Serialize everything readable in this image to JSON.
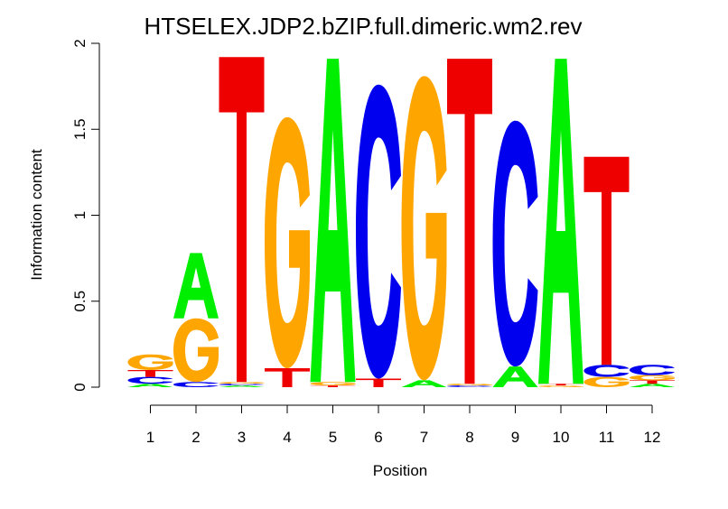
{
  "chart_data": {
    "type": "sequence-logo",
    "title": "HTSELEX.JDP2.bZIP.full.dimeric.wm2.rev",
    "xlabel": "Position",
    "ylabel": "Information content",
    "ylim": [
      0,
      2
    ],
    "y_ticks": [
      "0",
      "0.5",
      "1",
      "1.5",
      "2"
    ],
    "x_ticks": [
      "1",
      "2",
      "3",
      "4",
      "5",
      "6",
      "7",
      "8",
      "9",
      "10",
      "11",
      "12"
    ],
    "colors": {
      "A": "#00ee00",
      "C": "#0000ee",
      "G": "#ffa500",
      "T": "#ee0000"
    },
    "positions": [
      {
        "position": 1,
        "letters": [
          {
            "base": "A",
            "height": 0.02
          },
          {
            "base": "C",
            "height": 0.04
          },
          {
            "base": "T",
            "height": 0.04
          },
          {
            "base": "G",
            "height": 0.09
          }
        ]
      },
      {
        "position": 2,
        "letters": [
          {
            "base": "C",
            "height": 0.03
          },
          {
            "base": "G",
            "height": 0.37
          },
          {
            "base": "A",
            "height": 0.38
          }
        ]
      },
      {
        "position": 3,
        "letters": [
          {
            "base": "A",
            "height": 0.01
          },
          {
            "base": "C",
            "height": 0.01
          },
          {
            "base": "G",
            "height": 0.01
          },
          {
            "base": "T",
            "height": 1.89
          }
        ]
      },
      {
        "position": 4,
        "letters": [
          {
            "base": "T",
            "height": 0.11
          },
          {
            "base": "G",
            "height": 1.46
          }
        ]
      },
      {
        "position": 5,
        "letters": [
          {
            "base": "T",
            "height": 0.01
          },
          {
            "base": "G",
            "height": 0.02
          },
          {
            "base": "A",
            "height": 1.88
          }
        ]
      },
      {
        "position": 6,
        "letters": [
          {
            "base": "T",
            "height": 0.05
          },
          {
            "base": "C",
            "height": 1.71
          }
        ]
      },
      {
        "position": 7,
        "letters": [
          {
            "base": "A",
            "height": 0.04
          },
          {
            "base": "G",
            "height": 1.77
          }
        ]
      },
      {
        "position": 8,
        "letters": [
          {
            "base": "C",
            "height": 0.01
          },
          {
            "base": "G",
            "height": 0.01
          },
          {
            "base": "T",
            "height": 1.89
          }
        ]
      },
      {
        "position": 9,
        "letters": [
          {
            "base": "A",
            "height": 0.12
          },
          {
            "base": "C",
            "height": 1.43
          }
        ]
      },
      {
        "position": 10,
        "letters": [
          {
            "base": "G",
            "height": 0.01
          },
          {
            "base": "T",
            "height": 0.01
          },
          {
            "base": "A",
            "height": 1.89
          }
        ]
      },
      {
        "position": 11,
        "letters": [
          {
            "base": "G",
            "height": 0.06
          },
          {
            "base": "C",
            "height": 0.07
          },
          {
            "base": "T",
            "height": 1.21
          }
        ]
      },
      {
        "position": 12,
        "letters": [
          {
            "base": "A",
            "height": 0.02
          },
          {
            "base": "T",
            "height": 0.02
          },
          {
            "base": "G",
            "height": 0.03
          },
          {
            "base": "C",
            "height": 0.06
          }
        ]
      }
    ]
  }
}
